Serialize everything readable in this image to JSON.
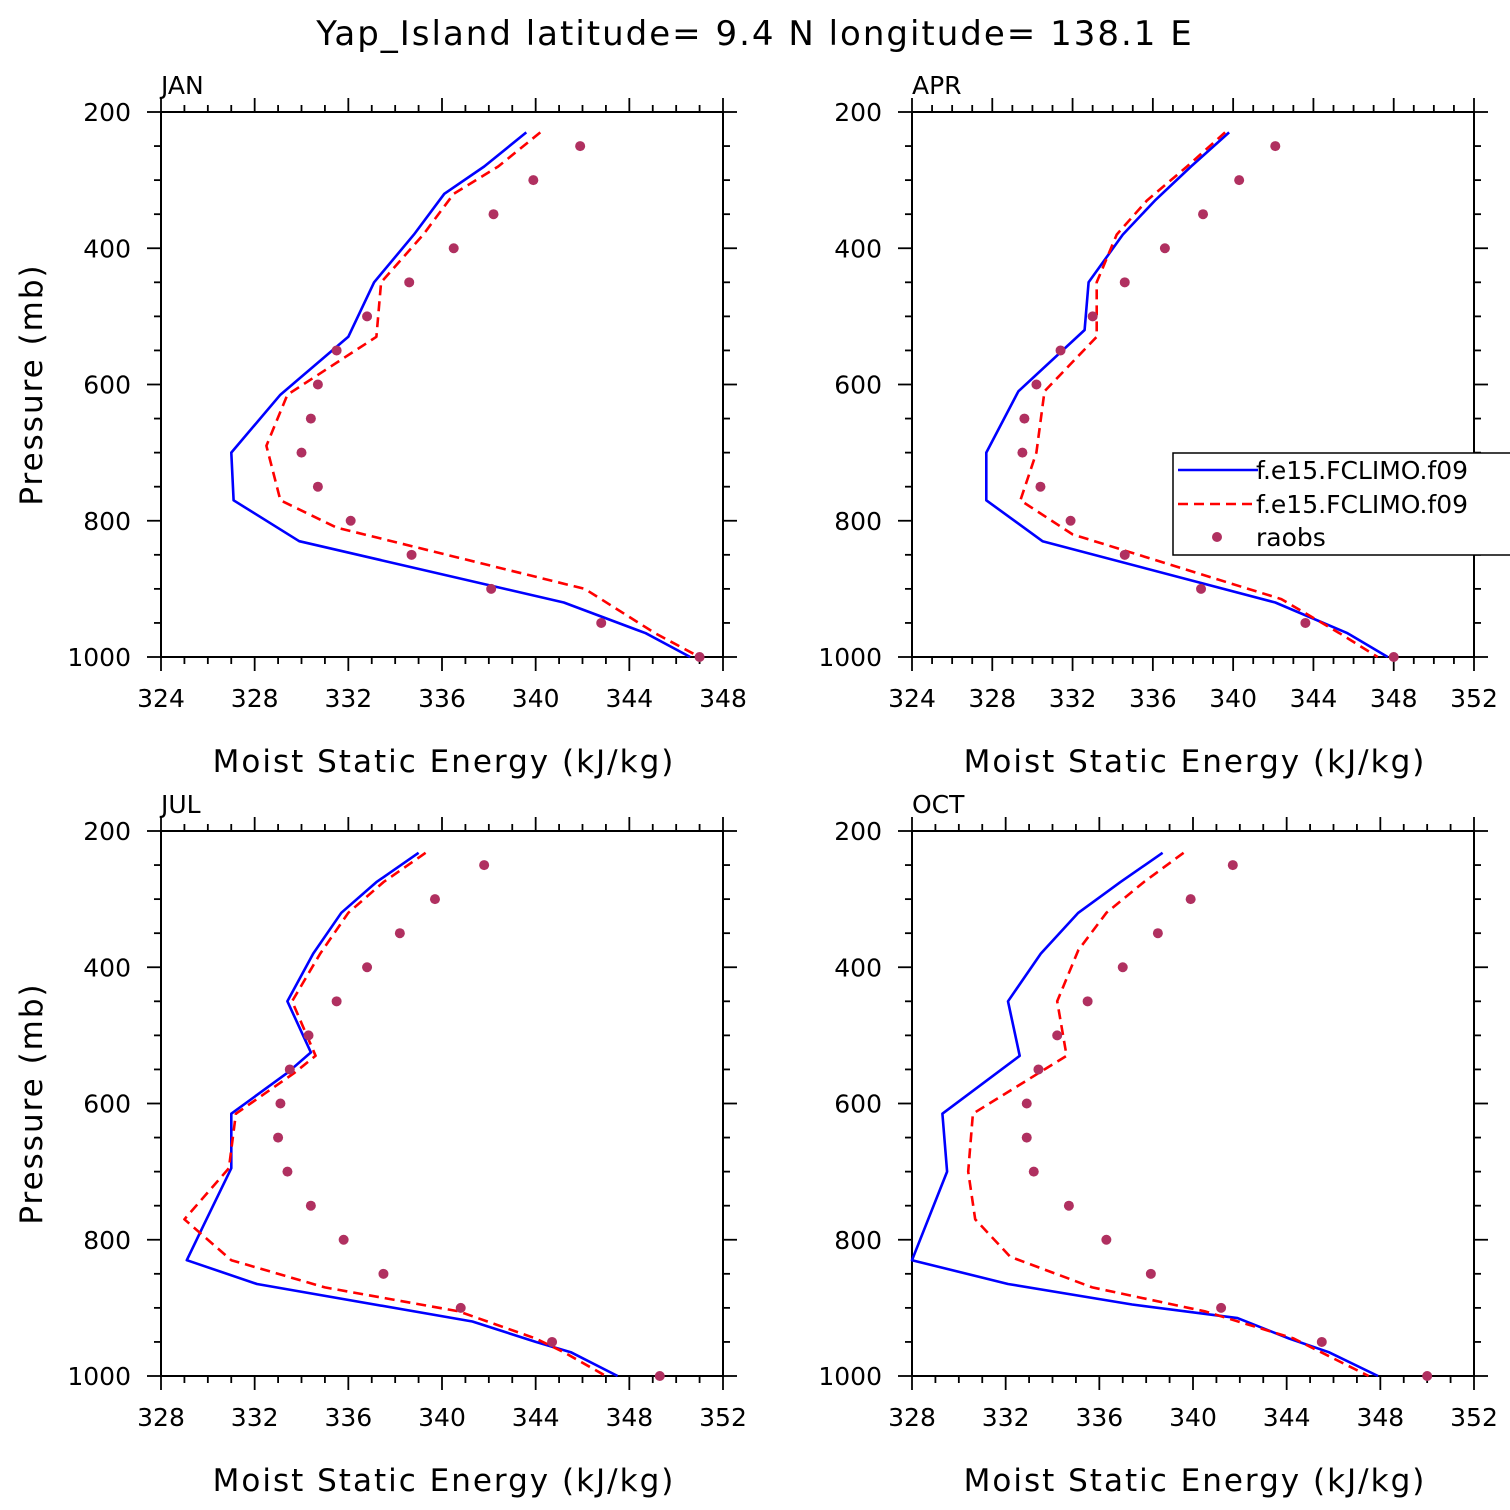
{
  "figure_title": "Yap_Island  latitude= 9.4 N longitude= 138.1 E",
  "colors": {
    "series_1": "#0000ff",
    "series_2": "#ff0000",
    "raobs": "#b03060"
  },
  "legend": {
    "panel": "APR",
    "entries": [
      {
        "label": "f.e15.FCLIMO.f09",
        "style": "solid",
        "color": "#0000ff"
      },
      {
        "label": "f.e15.FCLIMO.f09",
        "style": "dashed",
        "color": "#ff0000"
      },
      {
        "label": "raobs",
        "style": "marker",
        "color": "#b03060"
      }
    ]
  },
  "chart_data": [
    {
      "type": "line",
      "title": "JAN",
      "xlabel": "Moist Static Energy (kJ/kg)",
      "ylabel": "Pressure (mb)",
      "xlim": [
        324,
        348
      ],
      "ylim": [
        1000,
        200
      ],
      "xticks": [
        324,
        328,
        332,
        336,
        340,
        344,
        348
      ],
      "yticks": [
        200,
        400,
        600,
        800,
        1000
      ],
      "series": [
        {
          "style": "solid",
          "x": [
            339.6,
            337.8,
            336.1,
            334.8,
            333.1,
            332.0,
            329.1,
            327.0,
            327.1,
            329.9,
            341.2,
            344.7,
            346.6
          ],
          "y": [
            230,
            280,
            320,
            380,
            450,
            530,
            615,
            700,
            770,
            830,
            920,
            965,
            1000
          ]
        },
        {
          "style": "dashed",
          "x": [
            340.2,
            338.4,
            336.5,
            335.2,
            333.4,
            333.2,
            329.4,
            328.5,
            329.1,
            331.5,
            342.1,
            345.1,
            347.0
          ],
          "y": [
            230,
            280,
            320,
            380,
            450,
            530,
            615,
            690,
            770,
            810,
            900,
            965,
            1000
          ]
        },
        {
          "style": "marker",
          "x": [
            341.9,
            339.9,
            338.2,
            336.5,
            334.6,
            332.8,
            331.5,
            330.7,
            330.4,
            330.0,
            330.7,
            332.1,
            334.7,
            338.1,
            342.8,
            347.0
          ],
          "y": [
            250,
            300,
            350,
            400,
            450,
            500,
            550,
            600,
            650,
            700,
            750,
            800,
            850,
            900,
            950,
            1000
          ]
        }
      ]
    },
    {
      "type": "line",
      "title": "APR",
      "xlabel": "Moist Static Energy (kJ/kg)",
      "ylabel": "",
      "xlim": [
        324,
        352
      ],
      "ylim": [
        1000,
        200
      ],
      "xticks": [
        324,
        328,
        332,
        336,
        340,
        344,
        348,
        352
      ],
      "yticks": [
        200,
        400,
        600,
        800,
        1000
      ],
      "series": [
        {
          "style": "solid",
          "x": [
            339.8,
            337.9,
            336.1,
            334.5,
            332.8,
            332.6,
            329.3,
            327.7,
            327.7,
            330.5,
            342.1,
            345.7,
            347.7
          ],
          "y": [
            230,
            280,
            330,
            380,
            450,
            520,
            610,
            700,
            770,
            830,
            920,
            965,
            1000
          ]
        },
        {
          "style": "dashed",
          "x": [
            339.6,
            337.7,
            335.7,
            334.2,
            333.2,
            333.2,
            330.6,
            330.2,
            329.4,
            332.0,
            342.4,
            345.3,
            347.2
          ],
          "y": [
            230,
            280,
            330,
            380,
            450,
            530,
            610,
            700,
            770,
            820,
            915,
            965,
            1000
          ]
        },
        {
          "style": "marker",
          "x": [
            342.1,
            340.3,
            338.5,
            336.6,
            334.6,
            333.0,
            331.4,
            330.2,
            329.6,
            329.5,
            330.4,
            331.9,
            334.6,
            338.4,
            343.6,
            348.0
          ],
          "y": [
            250,
            300,
            350,
            400,
            450,
            500,
            550,
            600,
            650,
            700,
            750,
            800,
            850,
            900,
            950,
            1000
          ]
        }
      ]
    },
    {
      "type": "line",
      "title": "JUL",
      "xlabel": "Moist Static Energy (kJ/kg)",
      "ylabel": "Pressure (mb)",
      "xlim": [
        328,
        352
      ],
      "ylim": [
        1000,
        200
      ],
      "xticks": [
        328,
        332,
        336,
        340,
        344,
        348,
        352
      ],
      "yticks": [
        200,
        400,
        600,
        800,
        1000
      ],
      "series": [
        {
          "style": "solid",
          "x": [
            339.0,
            337.2,
            335.7,
            334.5,
            333.4,
            334.4,
            333.4,
            331.0,
            331.0,
            329.8,
            329.1,
            332.1,
            341.3,
            344.0,
            345.5,
            347.5
          ],
          "y": [
            232,
            275,
            320,
            380,
            450,
            525,
            555,
            615,
            695,
            780,
            830,
            865,
            920,
            950,
            965,
            1000
          ]
        },
        {
          "style": "dashed",
          "x": [
            339.3,
            337.5,
            336.0,
            334.8,
            333.6,
            334.6,
            333.7,
            331.2,
            330.9,
            329.0,
            331.0,
            335.0,
            340.7,
            344.0,
            345.2,
            347.0
          ],
          "y": [
            232,
            275,
            320,
            380,
            450,
            530,
            555,
            615,
            695,
            770,
            830,
            870,
            905,
            945,
            965,
            1000
          ]
        },
        {
          "style": "marker",
          "x": [
            341.8,
            339.7,
            338.2,
            336.8,
            335.5,
            334.3,
            333.5,
            333.1,
            333.0,
            333.4,
            334.4,
            335.8,
            337.5,
            340.8,
            344.7,
            349.3
          ],
          "y": [
            250,
            300,
            350,
            400,
            450,
            500,
            550,
            600,
            650,
            700,
            750,
            800,
            850,
            900,
            950,
            1000
          ]
        }
      ]
    },
    {
      "type": "line",
      "title": "OCT",
      "xlabel": "Moist Static Energy (kJ/kg)",
      "ylabel": "",
      "xlim": [
        328,
        352
      ],
      "ylim": [
        1000,
        200
      ],
      "xticks": [
        328,
        332,
        336,
        340,
        344,
        348,
        352
      ],
      "yticks": [
        200,
        400,
        600,
        800,
        1000
      ],
      "series": [
        {
          "style": "solid",
          "x": [
            338.7,
            336.9,
            335.1,
            333.5,
            332.1,
            332.6,
            329.3,
            329.5,
            328.0,
            332.1,
            337.4,
            341.9,
            344.1,
            345.8,
            347.9
          ],
          "y": [
            232,
            275,
            320,
            380,
            450,
            530,
            615,
            700,
            830,
            865,
            895,
            915,
            945,
            965,
            1000
          ]
        },
        {
          "style": "dashed",
          "x": [
            339.6,
            337.9,
            336.3,
            335.1,
            334.2,
            334.6,
            330.6,
            330.4,
            330.7,
            332.2,
            335.7,
            340.5,
            344.3,
            347.5
          ],
          "y": [
            232,
            275,
            320,
            375,
            450,
            530,
            615,
            700,
            770,
            825,
            870,
            905,
            945,
            1000
          ]
        },
        {
          "style": "marker",
          "x": [
            341.7,
            339.9,
            338.5,
            337.0,
            335.5,
            334.2,
            333.4,
            332.9,
            332.9,
            333.2,
            334.7,
            336.3,
            338.2,
            341.2,
            345.5,
            350.0
          ],
          "y": [
            250,
            300,
            350,
            400,
            450,
            500,
            550,
            600,
            650,
            700,
            750,
            800,
            850,
            900,
            950,
            1000
          ]
        }
      ]
    }
  ]
}
